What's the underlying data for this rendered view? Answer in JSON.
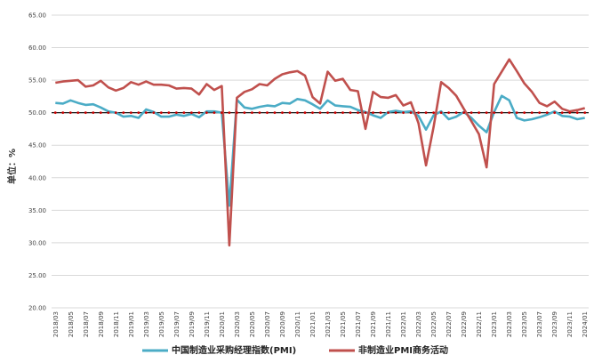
{
  "chart_data": {
    "type": "line",
    "ylabel": "单位：%",
    "ylim": [
      20,
      65
    ],
    "yticks": [
      "20.00",
      "25.00",
      "30.00",
      "35.00",
      "40.00",
      "45.00",
      "50.00",
      "55.00",
      "60.00",
      "65.00"
    ],
    "threshold": 50,
    "grid": "horizontal",
    "legend": "bottom",
    "x": [
      "2018/03",
      "2018/04",
      "2018/05",
      "2018/06",
      "2018/07",
      "2018/08",
      "2018/09",
      "2018/10",
      "2018/11",
      "2018/12",
      "2019/01",
      "2019/02",
      "2019/03",
      "2019/04",
      "2019/05",
      "2019/06",
      "2019/07",
      "2019/08",
      "2019/09",
      "2019/10",
      "2019/11",
      "2019/12",
      "2020/01",
      "2020/02",
      "2020/03",
      "2020/04",
      "2020/05",
      "2020/06",
      "2020/07",
      "2020/08",
      "2020/09",
      "2020/10",
      "2020/11",
      "2020/12",
      "2021/01",
      "2021/02",
      "2021/03",
      "2021/04",
      "2021/05",
      "2021/06",
      "2021/07",
      "2021/08",
      "2021/09",
      "2021/10",
      "2021/11",
      "2021/12",
      "2022/01",
      "2022/02",
      "2022/03",
      "2022/04",
      "2022/05",
      "2022/06",
      "2022/07",
      "2022/08",
      "2022/09",
      "2022/10",
      "2022/11",
      "2022/12",
      "2023/01",
      "2023/02",
      "2023/03",
      "2023/04",
      "2023/05",
      "2023/06",
      "2023/07",
      "2023/08",
      "2023/09",
      "2023/10",
      "2023/11",
      "2023/12",
      "2024/01"
    ],
    "xtick_labels": [
      "2018/03",
      "2018/05",
      "2018/07",
      "2018/09",
      "2018/11",
      "2019/01",
      "2019/03",
      "2019/05",
      "2019/07",
      "2019/09",
      "2019/11",
      "2020/01",
      "2020/03",
      "2020/05",
      "2020/07",
      "2020/09",
      "2020/11",
      "2021/01",
      "2021/03",
      "2021/05",
      "2021/07",
      "2021/09",
      "2021/11",
      "2022/01",
      "2022/03",
      "2022/05",
      "2022/07",
      "2022/09",
      "2022/11",
      "2023/01",
      "2023/03",
      "2023/05",
      "2023/07",
      "2023/09",
      "2023/11",
      "2024/01"
    ],
    "series": [
      {
        "name": "中国制造业采购经理指数(PMI)",
        "color": "#4bacc6",
        "values": [
          51.5,
          51.4,
          51.9,
          51.5,
          51.2,
          51.3,
          50.8,
          50.2,
          50.0,
          49.4,
          49.5,
          49.2,
          50.5,
          50.1,
          49.4,
          49.4,
          49.7,
          49.5,
          49.8,
          49.3,
          50.2,
          50.2,
          50.0,
          35.7,
          52.0,
          50.8,
          50.6,
          50.9,
          51.1,
          51.0,
          51.5,
          51.4,
          52.1,
          51.9,
          51.3,
          50.6,
          51.9,
          51.1,
          51.0,
          50.9,
          50.4,
          50.1,
          49.6,
          49.2,
          50.1,
          50.3,
          50.1,
          50.2,
          49.5,
          47.4,
          49.6,
          50.2,
          49.0,
          49.4,
          50.1,
          49.2,
          48.0,
          47.0,
          50.1,
          52.6,
          51.9,
          49.2,
          48.8,
          49.0,
          49.3,
          49.7,
          50.2,
          49.5,
          49.4,
          49.0,
          49.2
        ]
      },
      {
        "name": "非制造业PMI商务活动",
        "color": "#c0504d",
        "values": [
          54.6,
          54.8,
          54.9,
          55.0,
          54.0,
          54.2,
          54.9,
          53.9,
          53.4,
          53.8,
          54.7,
          54.3,
          54.8,
          54.3,
          54.3,
          54.2,
          53.7,
          53.8,
          53.7,
          52.8,
          54.4,
          53.5,
          54.1,
          29.6,
          52.3,
          53.2,
          53.6,
          54.4,
          54.2,
          55.2,
          55.9,
          56.2,
          56.4,
          55.7,
          52.4,
          51.4,
          56.3,
          54.9,
          55.2,
          53.5,
          53.3,
          47.5,
          53.2,
          52.4,
          52.3,
          52.7,
          51.1,
          51.6,
          48.4,
          41.9,
          47.8,
          54.7,
          53.8,
          52.6,
          50.6,
          48.7,
          46.7,
          41.6,
          54.4,
          56.3,
          58.2,
          56.4,
          54.5,
          53.2,
          51.5,
          51.0,
          51.7,
          50.6,
          50.2,
          50.4,
          50.7
        ]
      }
    ]
  }
}
